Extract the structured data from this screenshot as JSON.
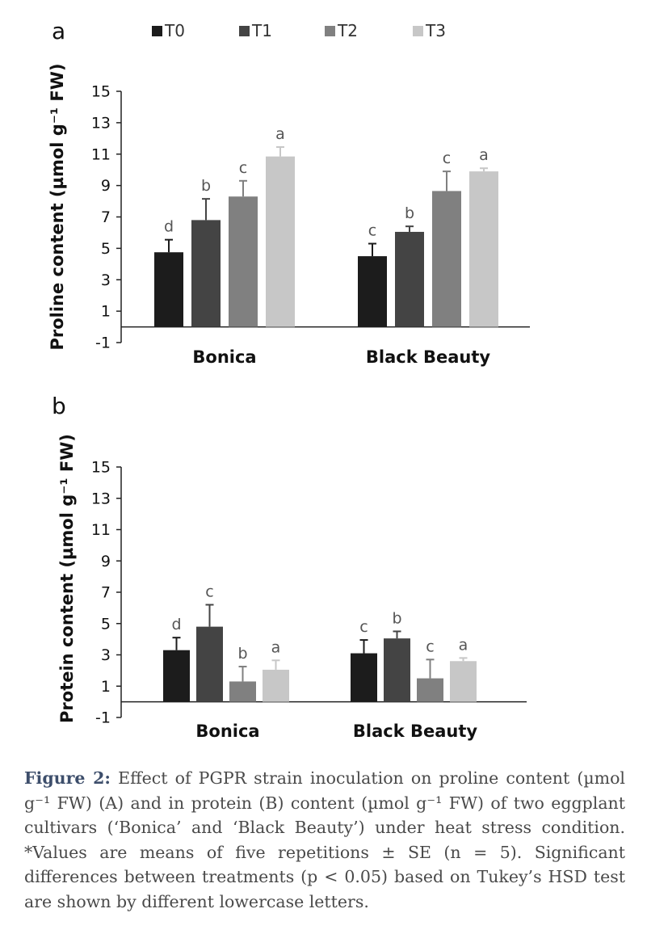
{
  "panels": [
    {
      "panel_label": "a",
      "chart_data": {
        "type": "bar",
        "ylabel": "Proline content (µmol g⁻¹ FW)",
        "ylim": [
          -1,
          15
        ],
        "yticks": [
          15,
          13,
          11,
          9,
          7,
          5,
          3,
          1,
          -1
        ],
        "categories": [
          "Bonica",
          "Black Beauty"
        ],
        "legend_position": "top",
        "series": [
          {
            "name": "T0",
            "color": "#1c1c1c",
            "values": [
              4.75,
              4.5
            ],
            "errors": [
              0.8,
              0.8
            ],
            "letters": [
              "d",
              "c"
            ]
          },
          {
            "name": "T1",
            "color": "#444444",
            "values": [
              6.8,
              6.05
            ],
            "errors": [
              1.35,
              0.35
            ],
            "letters": [
              "b",
              "b"
            ]
          },
          {
            "name": "T2",
            "color": "#808080",
            "values": [
              8.3,
              8.65
            ],
            "errors": [
              1.0,
              1.25
            ],
            "letters": [
              "c",
              "c"
            ]
          },
          {
            "name": "T3",
            "color": "#c7c7c7",
            "values": [
              10.85,
              9.9
            ],
            "errors": [
              0.6,
              0.2
            ],
            "letters": [
              "a",
              "a"
            ]
          }
        ]
      }
    },
    {
      "panel_label": "b",
      "chart_data": {
        "type": "bar",
        "ylabel": "Protein content (µmol g⁻¹ FW)",
        "ylim": [
          -1,
          15
        ],
        "yticks": [
          15,
          13,
          11,
          9,
          7,
          5,
          3,
          1,
          -1
        ],
        "categories": [
          "Bonica",
          "Black Beauty"
        ],
        "series": [
          {
            "name": "T0",
            "color": "#1c1c1c",
            "values": [
              3.3,
              3.1
            ],
            "errors": [
              0.8,
              0.85
            ],
            "letters": [
              "d",
              "c"
            ]
          },
          {
            "name": "T1",
            "color": "#444444",
            "values": [
              4.8,
              4.05
            ],
            "errors": [
              1.4,
              0.45
            ],
            "letters": [
              "c",
              "b"
            ]
          },
          {
            "name": "T2",
            "color": "#808080",
            "values": [
              1.3,
              1.5
            ],
            "errors": [
              0.95,
              1.2
            ],
            "letters": [
              "b",
              "c"
            ]
          },
          {
            "name": "T3",
            "color": "#c7c7c7",
            "values": [
              2.05,
              2.6
            ],
            "errors": [
              0.6,
              0.2
            ],
            "letters": [
              "a",
              "a"
            ]
          }
        ]
      }
    }
  ],
  "caption": {
    "label": "Figure 2:",
    "text": " Effect of PGPR strain inoculation on proline content (µmol g⁻¹ FW) (A) and in protein (B) content (µmol g⁻¹ FW) of two eggplant cultivars (‘Bonica’ and ‘Black Beauty’) under heat stress condition. *Values are means of five repetitions ± SE (n = 5). Significant differences between treatments (p < 0.05) based on Tukey’s HSD test are shown by different lowercase letters."
  }
}
